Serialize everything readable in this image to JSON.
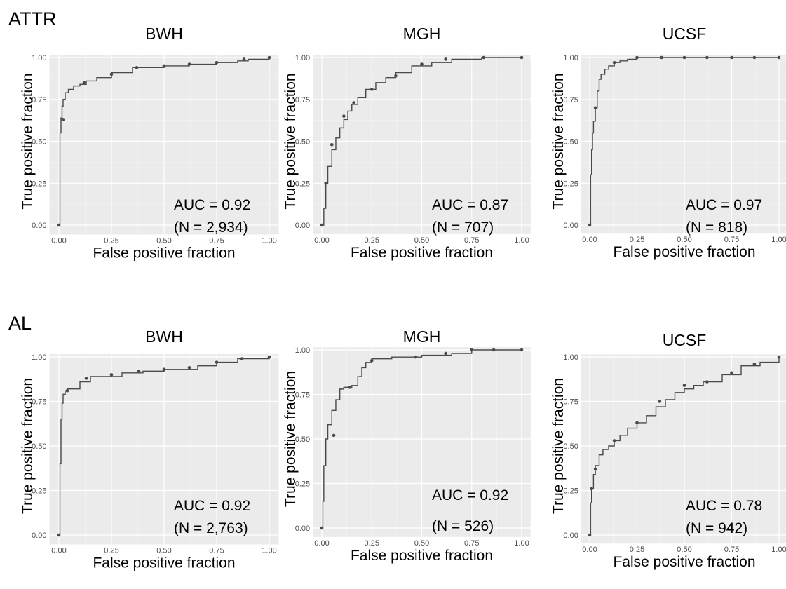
{
  "sections": [
    {
      "label": "ATTR"
    },
    {
      "label": "AL"
    }
  ],
  "chart_data": [
    {
      "type": "line",
      "section": "ATTR",
      "title": "BWH",
      "xlabel": "False positive fraction",
      "ylabel": "True positive fraction",
      "xlim": [
        0,
        1
      ],
      "ylim": [
        0,
        1
      ],
      "grid": true,
      "xticks": [
        "0.00",
        "0.25",
        "0.50",
        "0.75",
        "1.00"
      ],
      "yticks": [
        "0.00",
        "0.25",
        "0.50",
        "0.75",
        "1.00"
      ],
      "annotations": [
        "AUC = 0.92",
        "(N = 2,934)"
      ],
      "x": [
        0,
        0.005,
        0.01,
        0.015,
        0.02,
        0.03,
        0.045,
        0.07,
        0.1,
        0.13,
        0.18,
        0.25,
        0.35,
        0.5,
        0.62,
        0.75,
        0.85,
        0.9,
        1.0
      ],
      "y": [
        0,
        0.55,
        0.64,
        0.71,
        0.75,
        0.79,
        0.81,
        0.83,
        0.84,
        0.86,
        0.88,
        0.91,
        0.94,
        0.95,
        0.96,
        0.97,
        0.98,
        0.99,
        1.0
      ],
      "points": {
        "x": [
          0,
          0.02,
          0.12,
          0.25,
          0.37,
          0.5,
          0.62,
          0.75,
          0.88,
          1.0
        ],
        "y": [
          0,
          0.63,
          0.85,
          0.9,
          0.94,
          0.95,
          0.96,
          0.97,
          0.99,
          1.0
        ]
      }
    },
    {
      "type": "line",
      "section": "ATTR",
      "title": "MGH",
      "xlabel": "False positive fraction",
      "ylabel": "True positive fraction",
      "xlim": [
        0,
        1
      ],
      "ylim": [
        0,
        1
      ],
      "grid": true,
      "xticks": [
        "0.00",
        "0.25",
        "0.50",
        "0.75",
        "1.00"
      ],
      "yticks": [
        "0.00",
        "0.25",
        "0.50",
        "0.75",
        "1.00"
      ],
      "annotations": [
        "AUC = 0.87",
        "(N = 707)"
      ],
      "x": [
        0,
        0.01,
        0.02,
        0.03,
        0.05,
        0.07,
        0.09,
        0.11,
        0.13,
        0.15,
        0.18,
        0.22,
        0.27,
        0.32,
        0.37,
        0.45,
        0.55,
        0.65,
        0.8,
        1.0
      ],
      "y": [
        0,
        0.1,
        0.25,
        0.35,
        0.45,
        0.52,
        0.58,
        0.63,
        0.68,
        0.72,
        0.76,
        0.81,
        0.85,
        0.88,
        0.91,
        0.95,
        0.97,
        0.99,
        1.0,
        1.0
      ],
      "points": {
        "x": [
          0,
          0.02,
          0.05,
          0.11,
          0.16,
          0.25,
          0.37,
          0.5,
          0.62,
          0.81,
          1.0
        ],
        "y": [
          0,
          0.25,
          0.48,
          0.65,
          0.73,
          0.81,
          0.89,
          0.96,
          0.99,
          1.0,
          1.0
        ]
      }
    },
    {
      "type": "line",
      "section": "ATTR",
      "title": "UCSF",
      "xlabel": "False positive fraction",
      "ylabel": "True positive fraction",
      "xlim": [
        0,
        1
      ],
      "ylim": [
        0,
        1
      ],
      "grid": true,
      "xticks": [
        "0.00",
        "0.25",
        "0.50",
        "0.75",
        "1.00"
      ],
      "yticks": [
        "0.00",
        "0.25",
        "0.50",
        "0.75",
        "1.00"
      ],
      "annotations": [
        "AUC = 0.97",
        "(N = 818)"
      ],
      "x": [
        0,
        0.005,
        0.01,
        0.015,
        0.02,
        0.03,
        0.04,
        0.05,
        0.06,
        0.08,
        0.1,
        0.13,
        0.16,
        0.2,
        0.25,
        0.5,
        1.0
      ],
      "y": [
        0,
        0.3,
        0.45,
        0.55,
        0.62,
        0.7,
        0.8,
        0.87,
        0.9,
        0.93,
        0.95,
        0.97,
        0.98,
        0.99,
        1.0,
        1.0,
        1.0
      ],
      "points": {
        "x": [
          0,
          0.03,
          0.13,
          0.25,
          0.38,
          0.5,
          0.62,
          0.75,
          0.87,
          1.0
        ],
        "y": [
          0,
          0.7,
          0.97,
          1.0,
          1.0,
          1.0,
          1.0,
          1.0,
          1.0,
          1.0
        ]
      }
    },
    {
      "type": "line",
      "section": "AL",
      "title": "BWH",
      "xlabel": "False positive fraction",
      "ylabel": "True positive fraction",
      "xlim": [
        0,
        1
      ],
      "ylim": [
        0,
        1
      ],
      "grid": true,
      "xticks": [
        "0.00",
        "0.25",
        "0.50",
        "0.75",
        "1.00"
      ],
      "yticks": [
        "0.00",
        "0.25",
        "0.50",
        "0.75",
        "1.00"
      ],
      "annotations": [
        "AUC = 0.92",
        "(N = 2,763)"
      ],
      "x": [
        0,
        0.005,
        0.01,
        0.015,
        0.02,
        0.03,
        0.04,
        0.06,
        0.1,
        0.15,
        0.2,
        0.3,
        0.4,
        0.5,
        0.62,
        0.66,
        0.75,
        0.85,
        0.88,
        1.0
      ],
      "y": [
        0,
        0.4,
        0.65,
        0.74,
        0.79,
        0.81,
        0.82,
        0.82,
        0.86,
        0.89,
        0.89,
        0.91,
        0.92,
        0.93,
        0.93,
        0.95,
        0.97,
        0.99,
        0.99,
        1.0
      ],
      "points": {
        "x": [
          0,
          0.04,
          0.13,
          0.25,
          0.38,
          0.5,
          0.62,
          0.75,
          0.87,
          1.0
        ],
        "y": [
          0,
          0.81,
          0.88,
          0.9,
          0.92,
          0.93,
          0.94,
          0.97,
          0.99,
          1.0
        ]
      }
    },
    {
      "type": "line",
      "section": "AL",
      "title": "MGH",
      "xlabel": "False positive fraction",
      "ylabel": "True positive fraction",
      "xlim": [
        0,
        1
      ],
      "ylim": [
        0,
        1
      ],
      "grid": true,
      "xticks": [
        "0.00",
        "0.25",
        "0.50",
        "0.75",
        "1.00"
      ],
      "yticks": [
        "0.00",
        "0.25",
        "0.50",
        "0.75",
        "1.00"
      ],
      "annotations": [
        "AUC = 0.92",
        "(N = 526)"
      ],
      "x": [
        0,
        0.005,
        0.01,
        0.02,
        0.03,
        0.05,
        0.07,
        0.09,
        0.11,
        0.15,
        0.18,
        0.2,
        0.22,
        0.25,
        0.35,
        0.5,
        0.65,
        0.75,
        1.0
      ],
      "y": [
        0,
        0.15,
        0.35,
        0.5,
        0.58,
        0.66,
        0.72,
        0.78,
        0.79,
        0.8,
        0.85,
        0.9,
        0.93,
        0.95,
        0.96,
        0.97,
        0.98,
        1.0,
        1.0
      ],
      "points": {
        "x": [
          0,
          0.06,
          0.14,
          0.25,
          0.47,
          0.62,
          0.75,
          0.86,
          1.0
        ],
        "y": [
          0,
          0.52,
          0.79,
          0.94,
          0.96,
          0.98,
          1.0,
          1.0,
          1.0
        ]
      }
    },
    {
      "type": "line",
      "section": "AL",
      "title": "UCSF",
      "xlabel": "False positive fraction",
      "ylabel": "True positive fraction",
      "xlim": [
        0,
        1
      ],
      "ylim": [
        0,
        1
      ],
      "grid": true,
      "xticks": [
        "0.00",
        "0.25",
        "0.50",
        "0.75",
        "1.00"
      ],
      "yticks": [
        "0.00",
        "0.25",
        "0.50",
        "0.75",
        "1.00"
      ],
      "annotations": [
        "AUC = 0.78",
        "(N = 942)"
      ],
      "x": [
        0,
        0.005,
        0.01,
        0.02,
        0.03,
        0.05,
        0.07,
        0.1,
        0.13,
        0.16,
        0.2,
        0.25,
        0.3,
        0.35,
        0.4,
        0.45,
        0.5,
        0.55,
        0.6,
        0.7,
        0.8,
        0.9,
        1.0
      ],
      "y": [
        0,
        0.18,
        0.26,
        0.34,
        0.39,
        0.45,
        0.48,
        0.5,
        0.53,
        0.56,
        0.6,
        0.63,
        0.67,
        0.72,
        0.76,
        0.8,
        0.82,
        0.84,
        0.86,
        0.9,
        0.95,
        0.97,
        1.0
      ],
      "points": {
        "x": [
          0,
          0.01,
          0.03,
          0.13,
          0.25,
          0.37,
          0.5,
          0.62,
          0.75,
          0.87,
          1.0
        ],
        "y": [
          0,
          0.26,
          0.37,
          0.53,
          0.63,
          0.75,
          0.84,
          0.86,
          0.91,
          0.96,
          1.0
        ]
      }
    }
  ]
}
